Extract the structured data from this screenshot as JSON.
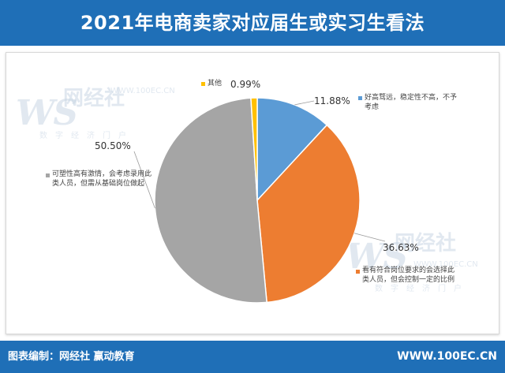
{
  "header": {
    "title": "2021年电商卖家对应届生或实习生看法"
  },
  "watermark": {
    "logo": "WS",
    "name": "网经社",
    "url": "WWW.100EC.CN",
    "sub": "数字经济门户"
  },
  "chart_data": {
    "type": "pie",
    "title": "2021年电商卖家对应届生或实习生看法",
    "slices": [
      {
        "label": "好高骛远，稳定性不高，不予考虑",
        "value": 11.88,
        "value_label": "11.88%",
        "color": "#5b9bd5"
      },
      {
        "label": "看有符合岗位要求的会选择此类人员，但会控制一定的比例",
        "value": 36.63,
        "value_label": "36.63%",
        "color": "#ed7d31"
      },
      {
        "label": "可塑性高有激情，会考虑录用此类人员，但需从基础岗位做起",
        "value": 50.5,
        "value_label": "50.50%",
        "color": "#a5a5a5"
      },
      {
        "label": "其他",
        "value": 0.99,
        "value_label": "0.99%",
        "color": "#ffc000"
      }
    ],
    "start_angle_deg": 0,
    "direction": "clockwise",
    "legend": "inline-labels"
  },
  "footer": {
    "left": "图表编制：网经社  赢动教育",
    "right": "WWW.100EC.CN"
  }
}
